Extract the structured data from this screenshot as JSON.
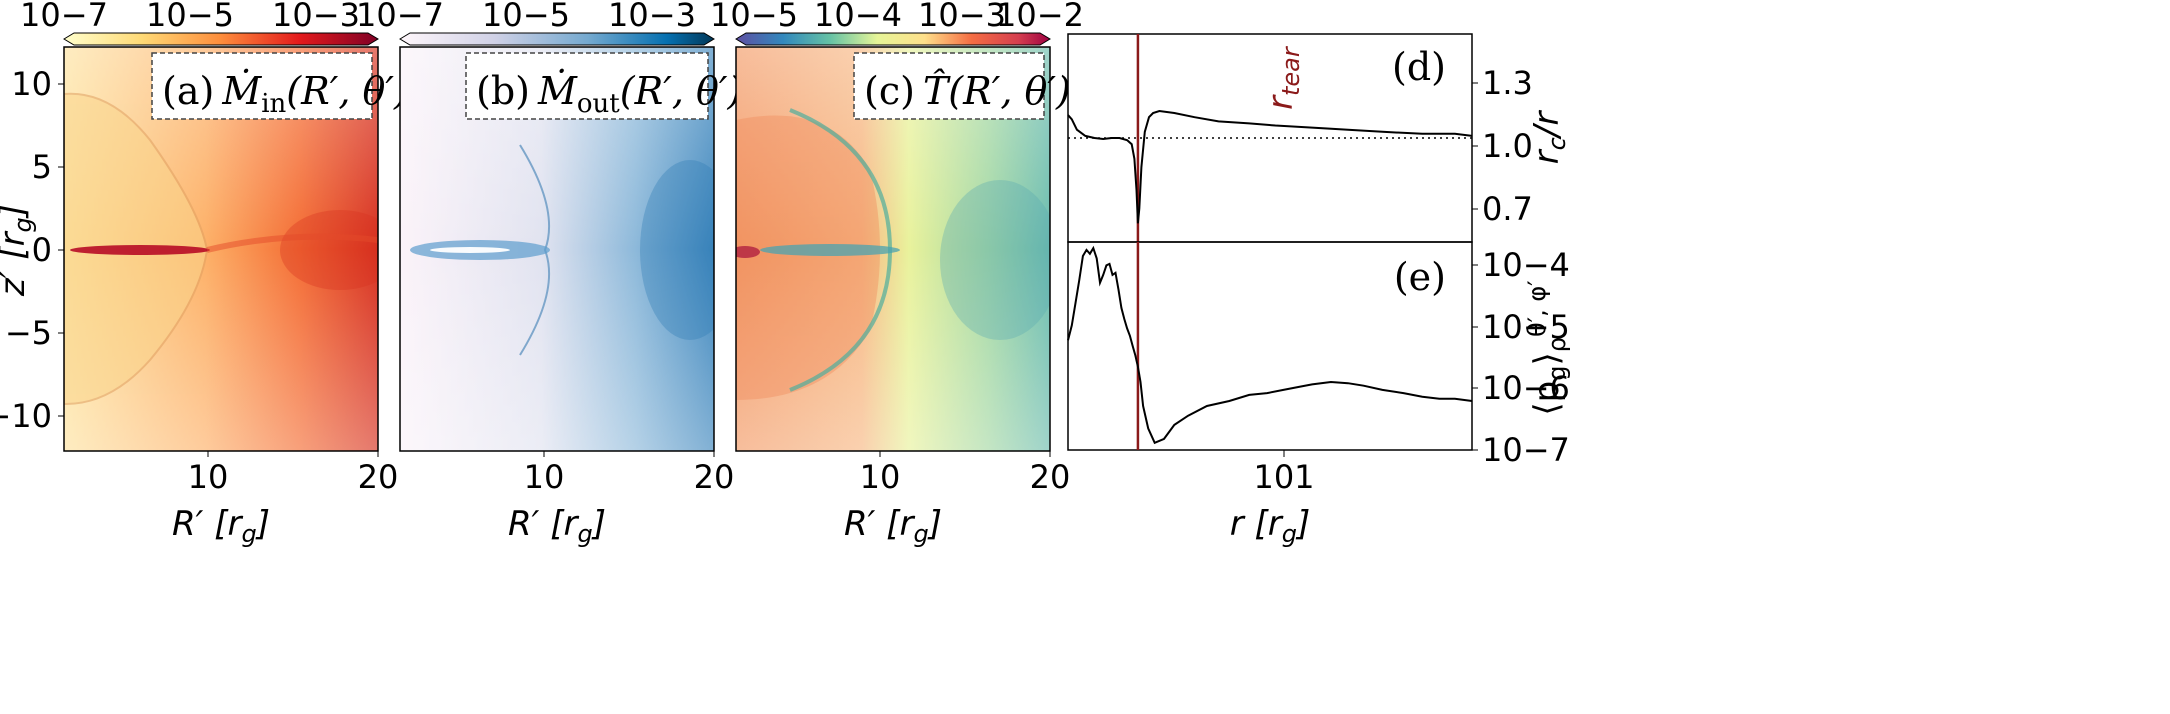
{
  "chart_data": [
    {
      "type": "heatmap",
      "panel_label": "(a)",
      "quantity": "Ṁin(R′, θ′)",
      "colormap": "YlOrRd",
      "colorbar_ticks": [
        "10−7",
        "10−5",
        "10−3"
      ],
      "colorbar_range_log10": [
        -7,
        -2
      ],
      "x_ticks": [
        "10",
        "20"
      ],
      "x_ticks_values": [
        10,
        20
      ],
      "xlim": [
        1.5,
        20
      ],
      "ylim": [
        -12,
        12
      ],
      "y_ticks": [
        "10",
        "5",
        "0",
        "−5",
        "−10"
      ],
      "y_ticks_values": [
        10,
        5,
        0,
        -5,
        -10
      ],
      "xlabel": "R′ [rg]",
      "ylabel": "z′ [rg]"
    },
    {
      "type": "heatmap",
      "panel_label": "(b)",
      "quantity": "Ṁout(R′, θ′)",
      "colormap": "PuBu",
      "colorbar_ticks": [
        "10−7",
        "10−5",
        "10−3"
      ],
      "colorbar_range_log10": [
        -7,
        -2
      ],
      "x_ticks": [
        "10",
        "20"
      ],
      "x_ticks_values": [
        10,
        20
      ],
      "xlim": [
        1.5,
        20
      ],
      "ylim": [
        -12,
        12
      ],
      "xlabel": "R′ [rg]"
    },
    {
      "type": "heatmap",
      "panel_label": "(c)",
      "quantity": "T̂(R′, θ′)",
      "colormap": "Spectral_r",
      "colorbar_ticks": [
        "10−5",
        "10−4",
        "10−3",
        "10−2"
      ],
      "colorbar_range_log10": [
        -5,
        -2
      ],
      "x_ticks": [
        "10",
        "20"
      ],
      "x_ticks_values": [
        10,
        20
      ],
      "xlim": [
        1.5,
        20
      ],
      "ylim": [
        -12,
        12
      ],
      "xlabel": "R′ [rg]"
    },
    {
      "type": "line",
      "panel_label": "(d)",
      "xscale": "log",
      "xlim": [
        6.9,
        66
      ],
      "ylim": [
        0.5,
        1.5
      ],
      "y_ticks": [
        "1.3",
        "1.0",
        "0.7"
      ],
      "y_ticks_values": [
        1.3,
        1.0,
        0.7
      ],
      "ylabel": "rc/r",
      "reference_line": {
        "y": 1.0,
        "style": "dotted"
      },
      "vertical_marker": {
        "x": 10.2,
        "label": "rtear",
        "color": "#8b1a1a"
      },
      "series": [
        {
          "x": [
            6.9,
            7.05,
            7.25,
            7.6,
            8.0,
            8.4,
            8.8,
            9.2,
            9.6,
            9.85,
            10.0,
            10.12,
            10.2,
            10.28,
            10.4,
            10.6,
            10.85,
            11.1,
            11.5,
            12.5,
            14,
            16,
            19,
            22,
            27,
            33,
            40,
            50,
            60,
            66
          ],
          "y": [
            1.11,
            1.09,
            1.04,
            1.01,
            1.0,
            0.995,
            1.0,
            1.0,
            0.99,
            0.97,
            0.9,
            0.75,
            0.59,
            0.66,
            0.86,
            1.03,
            1.1,
            1.12,
            1.13,
            1.12,
            1.1,
            1.08,
            1.07,
            1.06,
            1.05,
            1.04,
            1.03,
            1.02,
            1.02,
            1.01
          ]
        }
      ]
    },
    {
      "type": "line",
      "panel_label": "(e)",
      "xscale": "log",
      "yscale": "log",
      "xlim": [
        6.9,
        66
      ],
      "ylim": [
        1e-07,
        0.0002
      ],
      "y_ticks": [
        "10−4",
        "10−5",
        "10−6",
        "10−7"
      ],
      "y_ticks_values": [
        0.0001,
        1e-05,
        1e-06,
        1e-07
      ],
      "x_ticks": [
        "101"
      ],
      "x_ticks_values": [
        10
      ],
      "xlabel": "r [rg]",
      "ylabel": "⟨pg⟩ρθ′,φ′",
      "vertical_marker": {
        "x": 10.2,
        "label": "rtear",
        "color": "#8b1a1a"
      },
      "series": [
        {
          "x": [
            6.9,
            7.05,
            7.2,
            7.35,
            7.5,
            7.65,
            7.8,
            7.95,
            8.1,
            8.25,
            8.4,
            8.55,
            8.7,
            8.85,
            9.0,
            9.15,
            9.3,
            9.45,
            9.6,
            9.75,
            9.9,
            10.05,
            10.2,
            10.35,
            10.5,
            10.8,
            11.2,
            11.8,
            12.5,
            13.5,
            15,
            17,
            19,
            21,
            23,
            25,
            27,
            30,
            33,
            36,
            40,
            45,
            50,
            55,
            60,
            66
          ],
          "y": [
            5.5e-06,
            9.5e-06,
            2.2e-05,
            5e-05,
            0.00012,
            0.00015,
            0.00013,
            0.00016,
            0.00011,
            4.5e-05,
            6e-05,
            8.5e-05,
            9e-05,
            6e-05,
            6.5e-05,
            3.5e-05,
            1.8e-05,
            1.2e-05,
            8.5e-06,
            6.5e-06,
            4.5e-06,
            3.2e-06,
            2.1e-06,
            1.2e-06,
            5e-07,
            2.2e-07,
            1.3e-07,
            1.5e-07,
            2.5e-07,
            3.5e-07,
            5e-07,
            6e-07,
            7.5e-07,
            8e-07,
            9e-07,
            1e-06,
            1.1e-06,
            1.2e-06,
            1.15e-06,
            1.05e-06,
            9e-07,
            8e-07,
            7e-07,
            6.5e-07,
            6.5e-07,
            6e-07
          ]
        }
      ]
    }
  ]
}
